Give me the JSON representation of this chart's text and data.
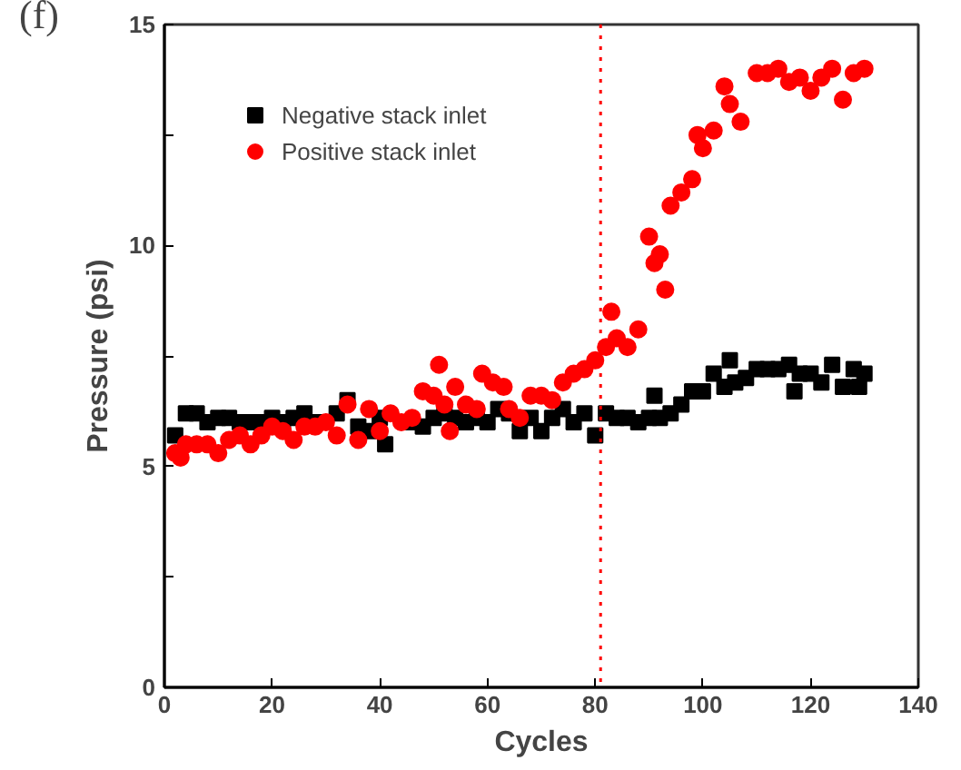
{
  "chart_data": {
    "type": "scatter",
    "xlabel": "Cycles",
    "ylabel": "Pressure (psi)",
    "annotations": [
      "(f)"
    ],
    "xlim": [
      0,
      140
    ],
    "ylim": [
      0,
      15
    ],
    "xticks": [
      0,
      20,
      40,
      60,
      80,
      100,
      120,
      140
    ],
    "yticks": [
      0,
      {
        "value": 2.5,
        "label": null
      },
      5,
      {
        "value": 7.5,
        "label": null
      },
      10,
      {
        "value": 12.5,
        "label": null
      },
      15
    ],
    "grid": false,
    "legend": "top left",
    "ref_lines": [
      {
        "axis": "x",
        "value": 81,
        "color": "#ff0000",
        "line_style": "dotted"
      }
    ],
    "series": [
      {
        "name": "Negative stack inlet",
        "color": "#000000",
        "marker": "square",
        "x": [
          2,
          4,
          6,
          8,
          10,
          12,
          14,
          16,
          18,
          20,
          22,
          24,
          26,
          28,
          30,
          32,
          34,
          36,
          38,
          40,
          41,
          44,
          46,
          48,
          50,
          52,
          54,
          56,
          58,
          60,
          62,
          64,
          66,
          68,
          70,
          72,
          74,
          76,
          78,
          80,
          82,
          84,
          86,
          88,
          90,
          91,
          92,
          94,
          96,
          98,
          100,
          102,
          104,
          105,
          106,
          108,
          110,
          112,
          114,
          116,
          117,
          118,
          120,
          122,
          124,
          126,
          128,
          129,
          130
        ],
        "values": [
          5.7,
          6.2,
          6.2,
          6.0,
          6.1,
          6.1,
          6.0,
          6.0,
          6.0,
          6.1,
          6.0,
          6.1,
          6.2,
          6.0,
          null,
          6.2,
          6.5,
          5.9,
          5.8,
          6.1,
          5.5,
          null,
          6.0,
          5.9,
          6.1,
          6.2,
          6.1,
          6.0,
          6.1,
          6.0,
          6.3,
          6.2,
          5.8,
          6.1,
          5.8,
          6.1,
          6.3,
          6.0,
          6.2,
          5.7,
          6.2,
          6.1,
          6.1,
          6.0,
          6.1,
          6.6,
          6.1,
          6.2,
          6.4,
          6.7,
          6.7,
          7.1,
          6.8,
          7.4,
          6.9,
          7.0,
          7.2,
          7.2,
          7.2,
          7.3,
          6.7,
          7.1,
          7.1,
          6.9,
          7.3,
          6.8,
          7.2,
          6.8,
          7.1
        ]
      },
      {
        "name": "Positive stack inlet",
        "color": "#ff0000",
        "marker": "circle",
        "x": [
          2,
          3,
          4,
          6,
          8,
          10,
          12,
          14,
          16,
          18,
          20,
          22,
          24,
          26,
          28,
          30,
          32,
          34,
          36,
          38,
          40,
          42,
          44,
          46,
          48,
          50,
          51,
          52,
          53,
          54,
          56,
          58,
          59,
          61,
          63,
          64,
          66,
          68,
          70,
          72,
          74,
          76,
          78,
          80,
          82,
          83,
          84,
          86,
          88,
          90,
          91,
          92,
          93,
          94,
          96,
          98,
          99,
          100,
          102,
          104,
          105,
          107,
          110,
          112,
          114,
          116,
          118,
          120,
          122,
          124,
          126,
          128,
          130
        ],
        "values": [
          5.3,
          5.2,
          5.5,
          5.5,
          5.5,
          5.3,
          5.6,
          5.7,
          5.5,
          5.7,
          5.9,
          5.8,
          5.6,
          5.9,
          5.9,
          6.0,
          5.7,
          6.4,
          5.6,
          6.3,
          5.8,
          6.2,
          6.0,
          6.1,
          6.7,
          6.6,
          7.3,
          6.4,
          5.8,
          6.8,
          6.4,
          6.3,
          7.1,
          6.9,
          6.8,
          6.3,
          6.1,
          6.6,
          6.6,
          6.5,
          6.9,
          7.1,
          7.2,
          7.4,
          7.7,
          8.5,
          7.9,
          7.7,
          8.1,
          10.2,
          9.6,
          9.8,
          9.0,
          10.9,
          11.2,
          11.5,
          12.5,
          12.2,
          12.6,
          13.6,
          13.2,
          12.8,
          13.9,
          13.9,
          14.0,
          13.7,
          13.8,
          13.5,
          13.8,
          14.0,
          13.3,
          13.9,
          14.0
        ]
      }
    ]
  }
}
